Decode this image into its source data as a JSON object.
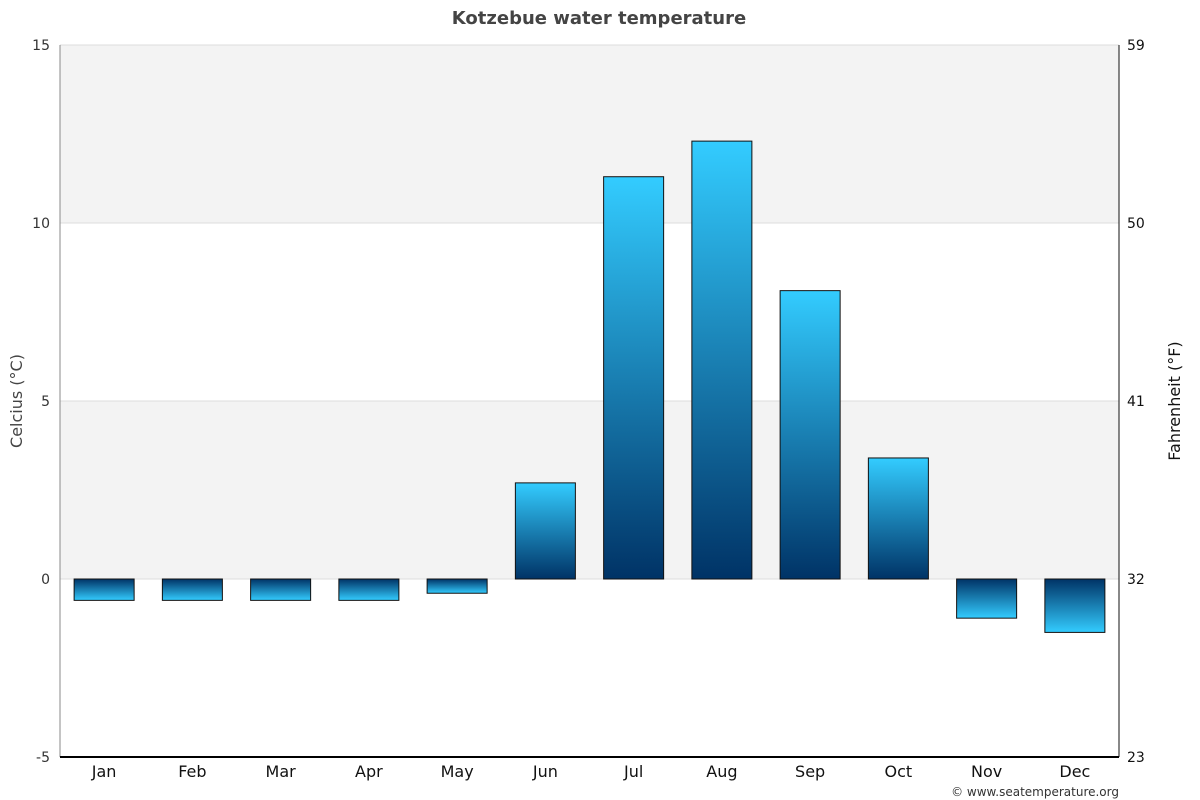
{
  "chart_data": {
    "type": "bar",
    "title": "Kotzebue water temperature",
    "categories": [
      "Jan",
      "Feb",
      "Mar",
      "Apr",
      "May",
      "Jun",
      "Jul",
      "Aug",
      "Sep",
      "Oct",
      "Nov",
      "Dec"
    ],
    "series": [
      {
        "values": [
          -0.6,
          -0.6,
          -0.6,
          -0.6,
          -0.4,
          2.7,
          11.3,
          12.3,
          8.1,
          3.4,
          -1.1,
          -1.5
        ]
      }
    ],
    "ylabel": "Celcius (°C)",
    "ylabel_right": "Fahrenheit (°F)",
    "ylim": [
      -5,
      15
    ],
    "yticks": [
      -5,
      0,
      5,
      10,
      15
    ],
    "yticks_right": [
      "23",
      "32",
      "41",
      "50",
      "59"
    ],
    "grid": "horizontal",
    "colors": {
      "bar_light": "#33ccff",
      "bar_dark": "#003366",
      "band": "#f3f3f3"
    }
  },
  "credit": "© www.seatemperature.org"
}
